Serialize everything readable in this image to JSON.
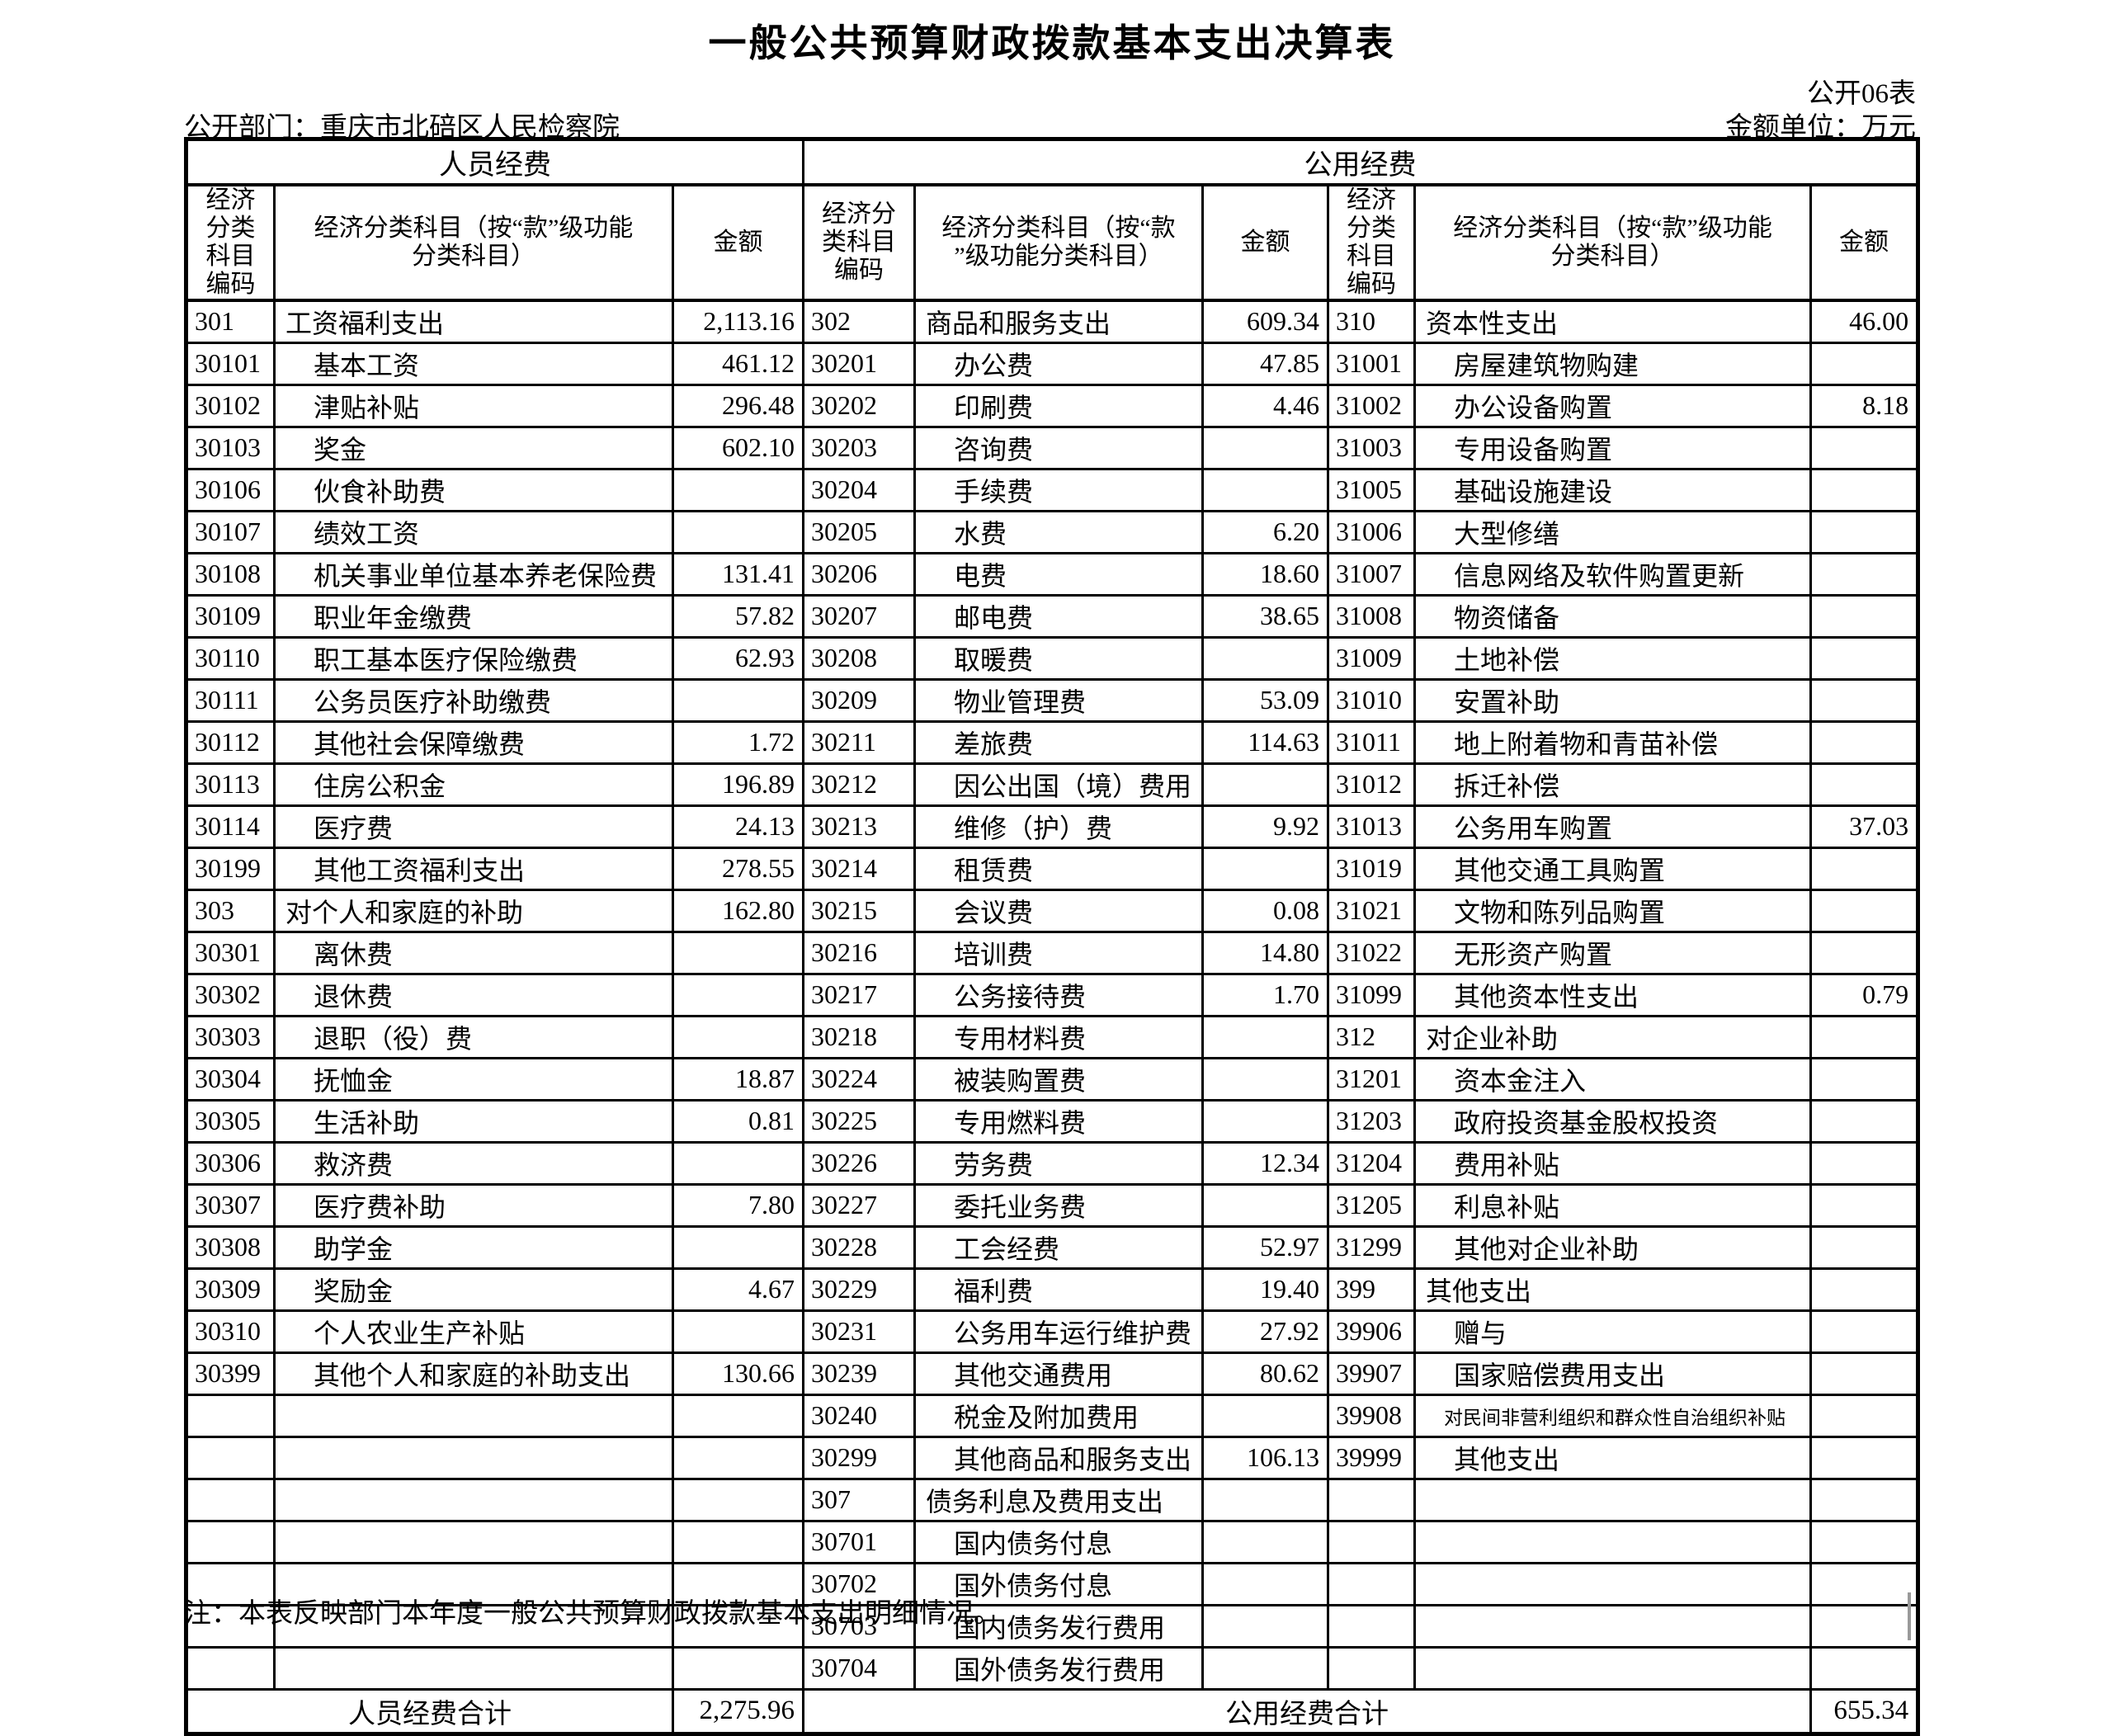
{
  "page": {
    "title": "一般公共预算财政拨款基本支出决算表",
    "table_number": "公开06表",
    "department": "公开部门：重庆市北碚区人民检察院",
    "unit": "金额单位：万元",
    "note": "注：本表反映部门本年度一般公共预算财政拨款基本支出明细情况。"
  },
  "table": {
    "sections": [
      {
        "title": "人员经费"
      },
      {
        "title": "公用经费"
      }
    ],
    "col_headers": [
      {
        "code_lines": [
          "经济",
          "分类",
          "科目",
          "编码"
        ],
        "name_lines": [
          "经济分类科目（按“款”级功能",
          "分类科目）"
        ],
        "amount_label": "金额"
      },
      {
        "code_lines": [
          "经济分",
          "类科目",
          "编码"
        ],
        "name_lines": [
          "经济分类科目（按“款",
          "”级功能分类科目）"
        ],
        "amount_label": "金额"
      },
      {
        "code_lines": [
          "经济",
          "分类",
          "科目",
          "编码"
        ],
        "name_lines": [
          "经济分类科目（按“款”级功能",
          "分类科目）"
        ],
        "amount_label": "金额"
      }
    ],
    "rows": [
      [
        "301",
        "工资福利支出",
        "2,113.16",
        "302",
        "商品和服务支出",
        "609.34",
        "310",
        "资本性支出",
        "46.00"
      ],
      [
        "30101",
        "基本工资",
        "461.12",
        "30201",
        "办公费",
        "47.85",
        "31001",
        "房屋建筑物购建",
        ""
      ],
      [
        "30102",
        "津贴补贴",
        "296.48",
        "30202",
        "印刷费",
        "4.46",
        "31002",
        "办公设备购置",
        "8.18"
      ],
      [
        "30103",
        "奖金",
        "602.10",
        "30203",
        "咨询费",
        "",
        "31003",
        "专用设备购置",
        ""
      ],
      [
        "30106",
        "伙食补助费",
        "",
        "30204",
        "手续费",
        "",
        "31005",
        "基础设施建设",
        ""
      ],
      [
        "30107",
        "绩效工资",
        "",
        "30205",
        "水费",
        "6.20",
        "31006",
        "大型修缮",
        ""
      ],
      [
        "30108",
        "机关事业单位基本养老保险费",
        "131.41",
        "30206",
        "电费",
        "18.60",
        "31007",
        "信息网络及软件购置更新",
        ""
      ],
      [
        "30109",
        "职业年金缴费",
        "57.82",
        "30207",
        "邮电费",
        "38.65",
        "31008",
        "物资储备",
        ""
      ],
      [
        "30110",
        "职工基本医疗保险缴费",
        "62.93",
        "30208",
        "取暖费",
        "",
        "31009",
        "土地补偿",
        ""
      ],
      [
        "30111",
        "公务员医疗补助缴费",
        "",
        "30209",
        "物业管理费",
        "53.09",
        "31010",
        "安置补助",
        ""
      ],
      [
        "30112",
        "其他社会保障缴费",
        "1.72",
        "30211",
        "差旅费",
        "114.63",
        "31011",
        "地上附着物和青苗补偿",
        ""
      ],
      [
        "30113",
        "住房公积金",
        "196.89",
        "30212",
        "因公出国（境）费用",
        "",
        "31012",
        "拆迁补偿",
        ""
      ],
      [
        "30114",
        "医疗费",
        "24.13",
        "30213",
        "维修（护）费",
        "9.92",
        "31013",
        "公务用车购置",
        "37.03"
      ],
      [
        "30199",
        "其他工资福利支出",
        "278.55",
        "30214",
        "租赁费",
        "",
        "31019",
        "其他交通工具购置",
        ""
      ],
      [
        "303",
        "对个人和家庭的补助",
        "162.80",
        "30215",
        "会议费",
        "0.08",
        "31021",
        "文物和陈列品购置",
        ""
      ],
      [
        "30301",
        "离休费",
        "",
        "30216",
        "培训费",
        "14.80",
        "31022",
        "无形资产购置",
        ""
      ],
      [
        "30302",
        "退休费",
        "",
        "30217",
        "公务接待费",
        "1.70",
        "31099",
        "其他资本性支出",
        "0.79"
      ],
      [
        "30303",
        "退职（役）费",
        "",
        "30218",
        "专用材料费",
        "",
        "312",
        "对企业补助",
        ""
      ],
      [
        "30304",
        "抚恤金",
        "18.87",
        "30224",
        "被装购置费",
        "",
        "31201",
        "资本金注入",
        ""
      ],
      [
        "30305",
        "生活补助",
        "0.81",
        "30225",
        "专用燃料费",
        "",
        "31203",
        "政府投资基金股权投资",
        ""
      ],
      [
        "30306",
        "救济费",
        "",
        "30226",
        "劳务费",
        "12.34",
        "31204",
        "费用补贴",
        ""
      ],
      [
        "30307",
        "医疗费补助",
        "7.80",
        "30227",
        "委托业务费",
        "",
        "31205",
        "利息补贴",
        ""
      ],
      [
        "30308",
        "助学金",
        "",
        "30228",
        "工会经费",
        "52.97",
        "31299",
        "其他对企业补助",
        ""
      ],
      [
        "30309",
        "奖励金",
        "4.67",
        "30229",
        "福利费",
        "19.40",
        "399",
        "其他支出",
        ""
      ],
      [
        "30310",
        "个人农业生产补贴",
        "",
        "30231",
        "公务用车运行维护费",
        "27.92",
        "39906",
        "赠与",
        ""
      ],
      [
        "30399",
        "其他个人和家庭的补助支出",
        "130.66",
        "30239",
        "其他交通费用",
        "80.62",
        "39907",
        "国家赔偿费用支出",
        ""
      ],
      [
        "",
        "",
        "",
        "30240",
        "税金及附加费用",
        "",
        "39908",
        "对民间非营利组织和群众性自治组织补贴",
        ""
      ],
      [
        "",
        "",
        "",
        "30299",
        "其他商品和服务支出",
        "106.13",
        "39999",
        "其他支出",
        ""
      ],
      [
        "",
        "",
        "",
        "307",
        "债务利息及费用支出",
        "",
        "",
        "",
        ""
      ],
      [
        "",
        "",
        "",
        "30701",
        "国内债务付息",
        "",
        "",
        "",
        ""
      ],
      [
        "",
        "",
        "",
        "30702",
        "国外债务付息",
        "",
        "",
        "",
        ""
      ],
      [
        "",
        "",
        "",
        "30703",
        "国内债务发行费用",
        "",
        "",
        "",
        ""
      ],
      [
        "",
        "",
        "",
        "30704",
        "国外债务发行费用",
        "",
        "",
        "",
        ""
      ]
    ],
    "totals": {
      "personnel_label": "人员经费合计",
      "personnel_value": "2,275.96",
      "public_label": "公用经费合计",
      "public_value": "655.34"
    }
  }
}
